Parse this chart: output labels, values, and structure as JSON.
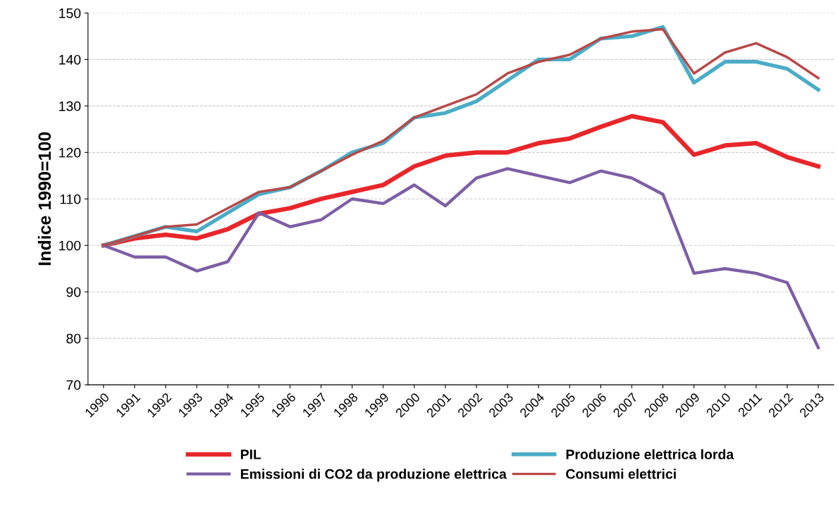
{
  "chart_data": {
    "type": "line",
    "ylabel": "Indice 1990=100",
    "categories": [
      "1990",
      "1991",
      "1992",
      "1993",
      "1994",
      "1995",
      "1996",
      "1997",
      "1998",
      "1999",
      "2000",
      "2001",
      "2002",
      "2003",
      "2004",
      "2005",
      "2006",
      "2007",
      "2008",
      "2009",
      "2010",
      "2011",
      "2012",
      "2013"
    ],
    "series": [
      {
        "name": "PIL",
        "color": "#e8262a",
        "values": [
          100,
          101.5,
          102.3,
          101.5,
          103.5,
          106.8,
          108,
          110,
          111.5,
          113,
          117,
          119.3,
          120,
          120,
          122,
          123,
          125.5,
          127.8,
          126.5,
          119.5,
          121.5,
          122,
          119,
          117
        ]
      },
      {
        "name": "Produzione elettrica lorda",
        "color": "#4aacc6",
        "values": [
          100,
          102,
          104,
          103,
          107,
          111,
          112.5,
          116,
          120,
          122,
          127.5,
          128.5,
          131,
          135.5,
          140,
          140,
          144.5,
          145,
          147,
          135,
          139.5,
          139.5,
          138,
          133.5
        ]
      },
      {
        "name": "Emissioni di CO2 da produzione elettrica",
        "color": "#7d5fa5",
        "values": [
          100,
          97.5,
          97.5,
          94.5,
          96.5,
          107,
          104,
          105.5,
          110,
          109,
          113,
          108.5,
          114.5,
          116.5,
          115,
          113.5,
          116,
          114.5,
          111,
          94,
          95,
          94,
          92,
          78
        ]
      },
      {
        "name": "Consumi elettrici",
        "color": "#b84848",
        "values": [
          100,
          102,
          104,
          104.5,
          108,
          111.5,
          112.5,
          116,
          119.5,
          122.5,
          127.5,
          130,
          132.5,
          137,
          139.5,
          141,
          144.5,
          146,
          146.5,
          137,
          141.5,
          143.5,
          140.5,
          136
        ]
      }
    ],
    "ylim": [
      70,
      150
    ],
    "yticks": [
      70,
      80,
      90,
      100,
      110,
      120,
      130,
      140,
      150
    ],
    "grid": "y",
    "legend": "bottom",
    "line_style": "solid",
    "marker": "none"
  }
}
